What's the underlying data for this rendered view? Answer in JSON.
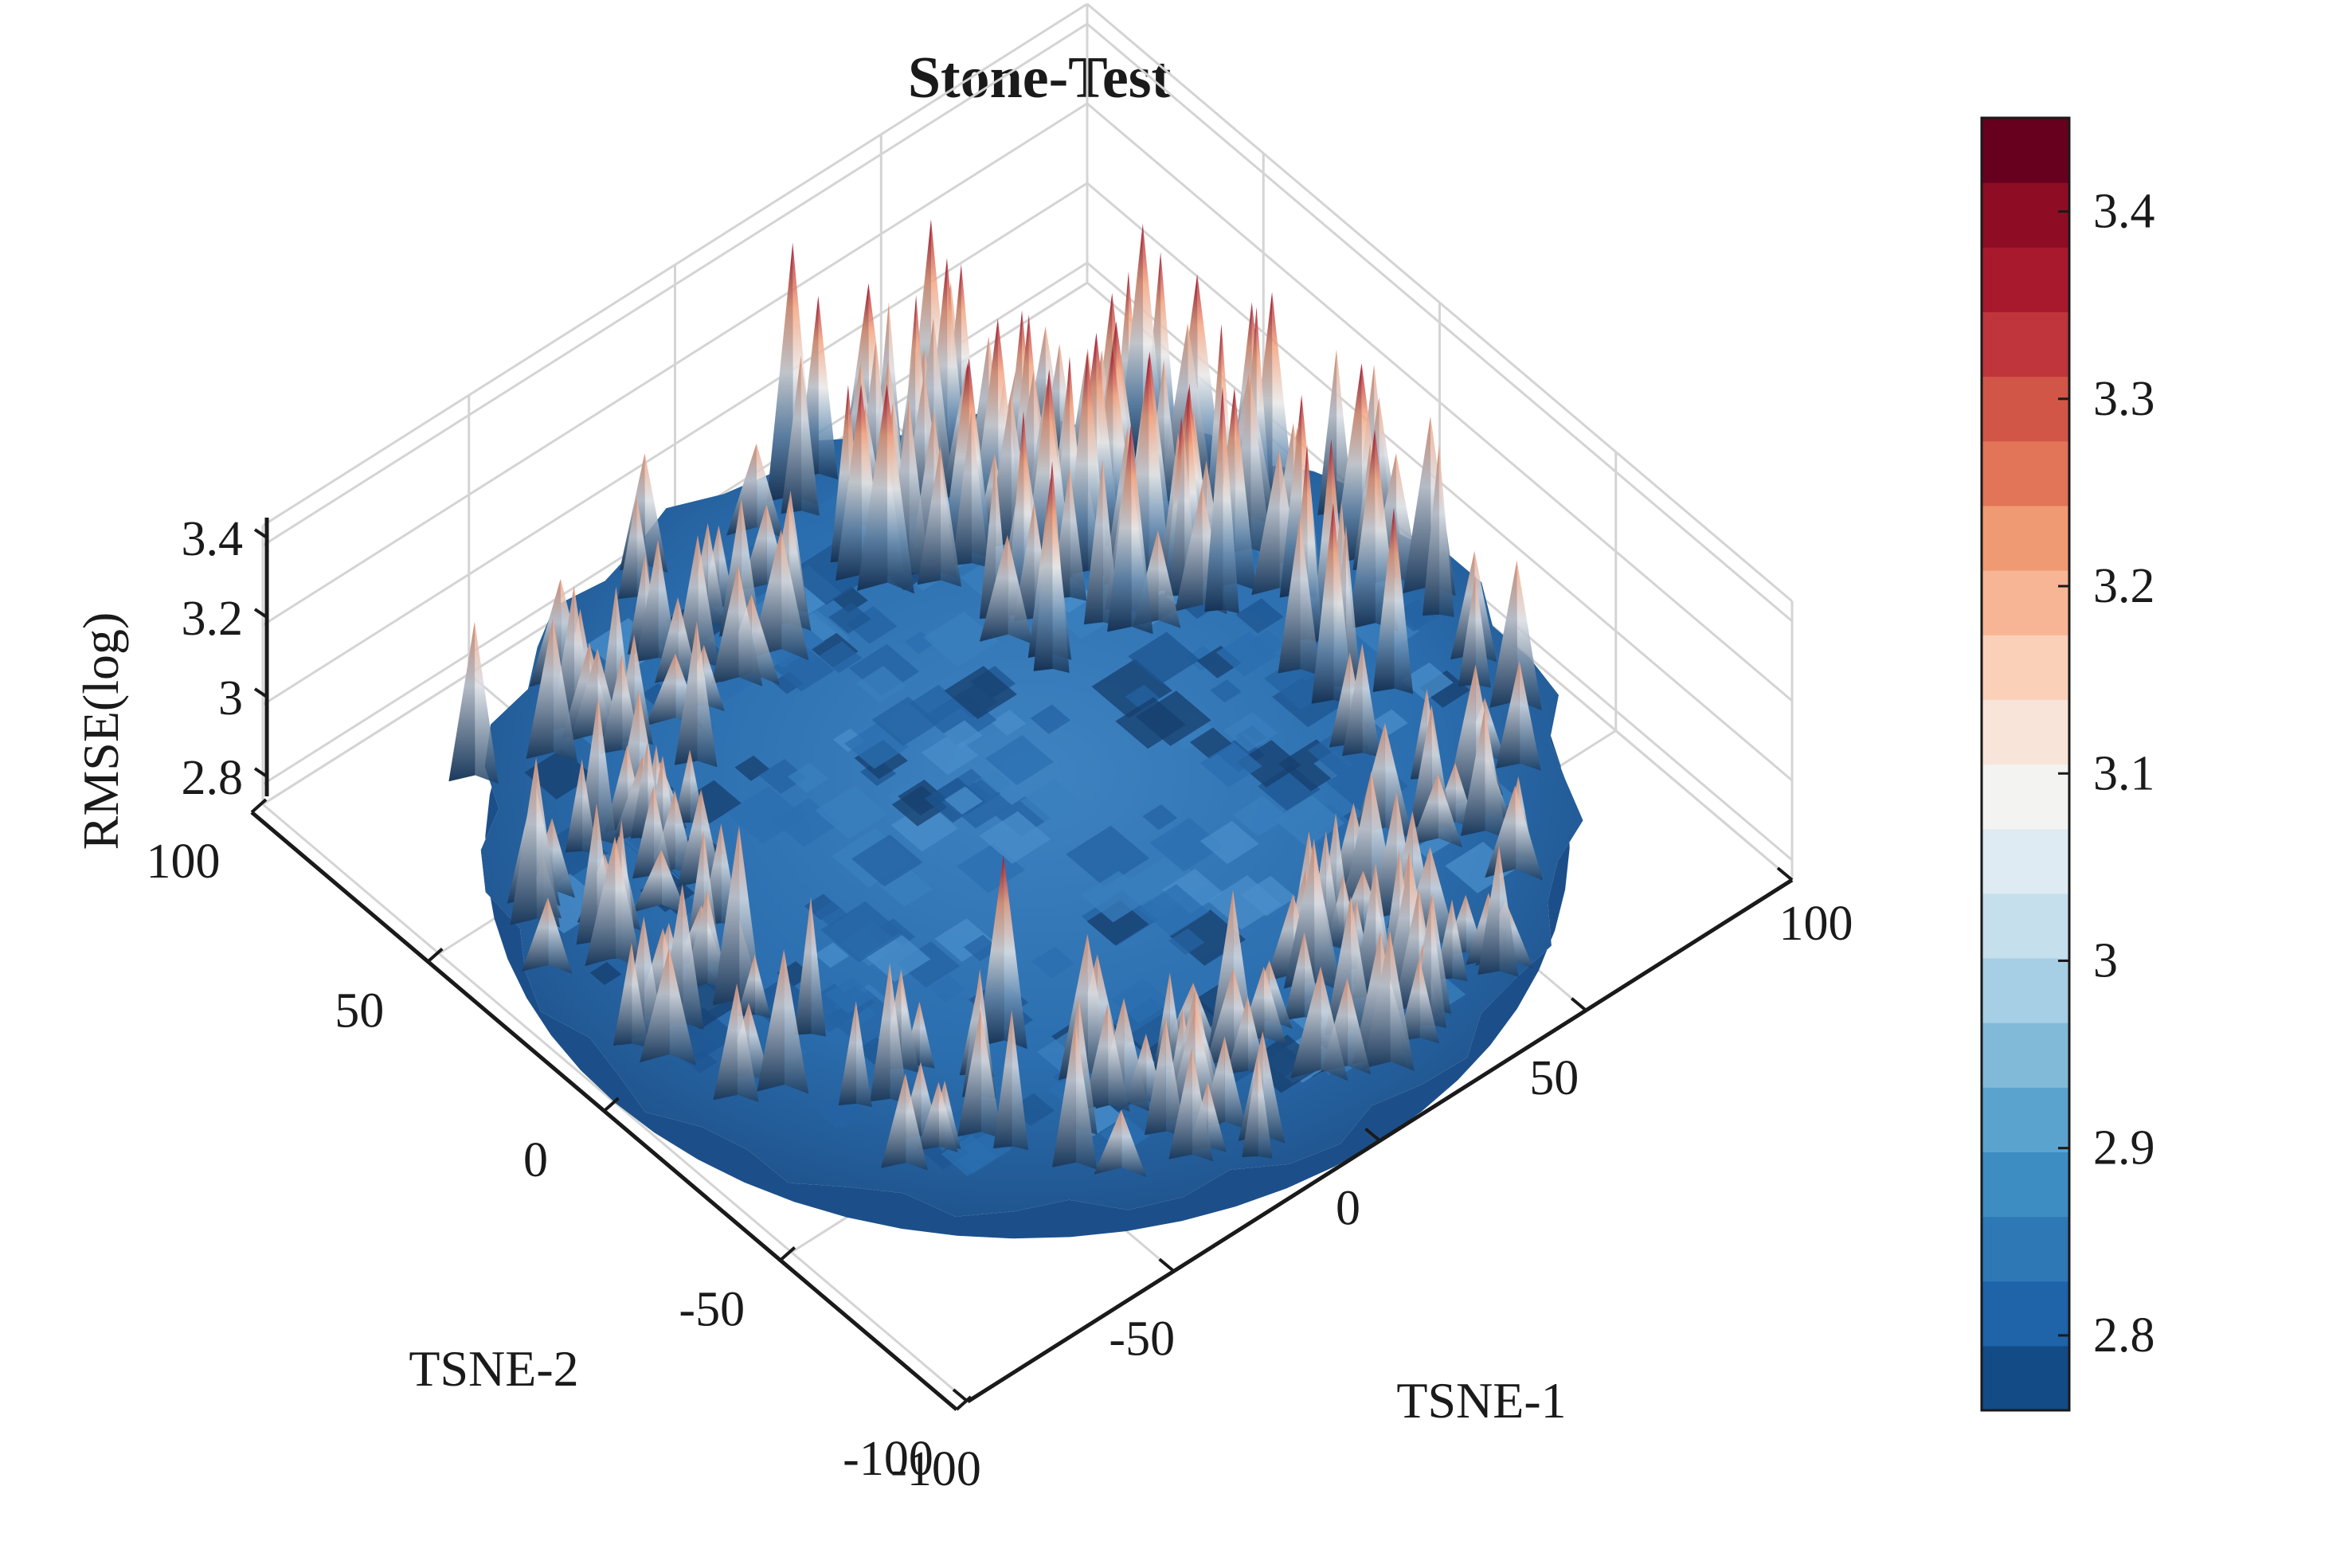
{
  "chart_data": {
    "type": "surface3d",
    "title": "Stone-Test",
    "xlabel": "TSNE-1",
    "ylabel": "TSNE-2",
    "zlabel": "RMSE(log)",
    "xlim": [
      -100,
      100
    ],
    "ylim": [
      -100,
      100
    ],
    "zlim": [
      2.75,
      3.45
    ],
    "x_ticks": [
      "-100",
      "-50",
      "0",
      "50",
      "100"
    ],
    "y_ticks": [
      "-100",
      "-50",
      "0",
      "50",
      "100"
    ],
    "z_ticks": [
      "2.8",
      "3",
      "3.2",
      "3.4"
    ],
    "colorbar": {
      "range": [
        2.76,
        3.45
      ],
      "ticks": [
        "2.8",
        "2.9",
        "3",
        "3.1",
        "3.2",
        "3.3",
        "3.4"
      ],
      "colormap": "RdBu_r",
      "levels": 20,
      "colors": [
        "#134b87",
        "#1f63a8",
        "#2e78b5",
        "#3d8dc2",
        "#5ba3cf",
        "#81bad8",
        "#a6cee4",
        "#c5dfec",
        "#deebf3",
        "#f3f3f1",
        "#f9e4da",
        "#fbd0b9",
        "#f7b596",
        "#f09a73",
        "#e27458",
        "#d15648",
        "#c0353c",
        "#a8192e",
        "#8e0d25",
        "#67001f"
      ]
    },
    "surface": {
      "domain_radius": 100,
      "description_levels": "floor level near 2.8 in the central region; ridges reaching 3.2-3.45 around the outer rim, highest in the region TSNE-1 20 to 100, TSNE-2 0 to 100",
      "peaks": [
        {
          "x": 20,
          "y": 90,
          "z": 3.45
        },
        {
          "x": 45,
          "y": 80,
          "z": 3.42
        },
        {
          "x": 75,
          "y": 55,
          "z": 3.4
        },
        {
          "x": 85,
          "y": 30,
          "z": 3.35
        },
        {
          "x": 55,
          "y": 30,
          "z": 3.38
        },
        {
          "x": 80,
          "y": -5,
          "z": 3.3
        },
        {
          "x": -70,
          "y": 75,
          "z": 3.2
        },
        {
          "x": -85,
          "y": 40,
          "z": 3.22
        },
        {
          "x": -70,
          "y": 0,
          "z": 3.25
        },
        {
          "x": -40,
          "y": -40,
          "z": 3.28
        },
        {
          "x": -10,
          "y": -70,
          "z": 3.22
        },
        {
          "x": 10,
          "y": -80,
          "z": 3.15
        }
      ]
    }
  }
}
